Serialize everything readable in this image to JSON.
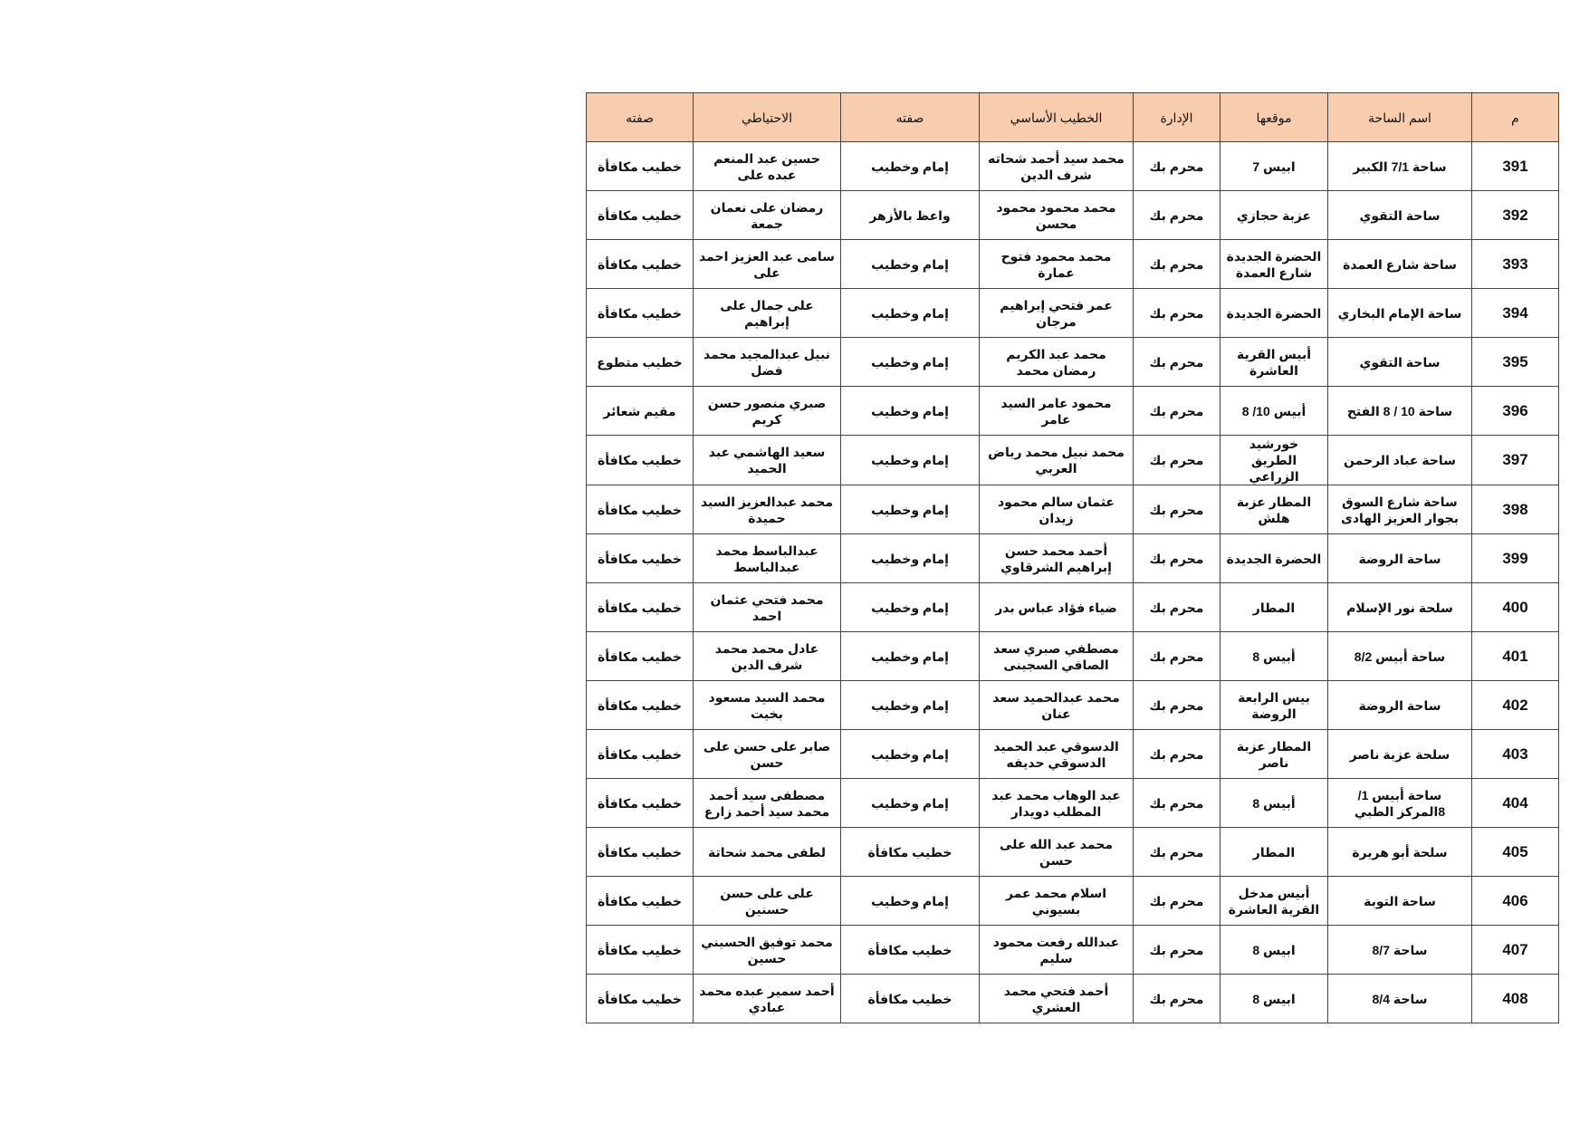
{
  "table": {
    "headers": [
      "م",
      "اسم الساحة",
      "موقعها",
      "الإدارة",
      "الخطيب الأساسي",
      "صفته",
      "الاحتياطي",
      "صفته"
    ],
    "rows": [
      [
        "391",
        "ساحة 7/1 الكبير",
        "ابيس 7",
        "محرم بك",
        "محمد سيد أحمد شحاته شرف الدين",
        "إمام وخطيب",
        "حسين عبد المنعم عبده على",
        "خطيب مكافأة"
      ],
      [
        "392",
        "ساحة التقوي",
        "عزبة حجازي",
        "محرم بك",
        "محمد محمود محمود محسن",
        "واعظ بالأزهر",
        "رمضان على نعمان جمعة",
        "خطيب مكافأة"
      ],
      [
        "393",
        "ساحة شارع العمدة",
        "الحضرة الجديدة شارع العمدة",
        "محرم بك",
        "محمد محمود فتوح عمارة",
        "إمام وخطيب",
        "سامى عبد العزيز احمد على",
        "خطيب مكافأة"
      ],
      [
        "394",
        "ساحة الإمام البخاري",
        "الحضرة الجديدة",
        "محرم بك",
        "عمر فتحي إبراهيم مرجان",
        "إمام وخطيب",
        "على جمال على إبراهيم",
        "خطيب مكافأة"
      ],
      [
        "395",
        "ساحة التقوي",
        "أبيس القرية العاشرة",
        "محرم بك",
        "محمد عبد الكريم رمضان محمد",
        "إمام وخطيب",
        "نبيل عبدالمجيد محمد فضل",
        "خطيب متطوع"
      ],
      [
        "396",
        "ساحة 10 / 8 الفتح",
        "أبيس 10/ 8",
        "محرم بك",
        "محمود عامر السيد عامر",
        "إمام وخطيب",
        "صبري منصور حسن كريم",
        "مقيم شعائر"
      ],
      [
        "397",
        "ساحة عباد الرحمن",
        "خورشيد الطريق الزراعي",
        "محرم بك",
        "محمد نبيل محمد رياض العربي",
        "إمام وخطيب",
        "سعيد الهاشمي عبد الحميد",
        "خطيب مكافأة"
      ],
      [
        "398",
        "ساحة شارع السوق بجوار العزيز الهادى",
        "المطار عزبة هلش",
        "محرم بك",
        "عثمان سالم محمود زيدان",
        "إمام وخطيب",
        "محمد عبدالعزيز السيد حميدة",
        "خطيب مكافأة"
      ],
      [
        "399",
        "ساحة الروضة",
        "الحضرة الجديدة",
        "محرم بك",
        "أحمد محمد حسن إبراهيم الشرقاوي",
        "إمام وخطيب",
        "عبدالباسط محمد عبدالباسط",
        "خطيب مكافأة"
      ],
      [
        "400",
        "سلحة نور الإسلام",
        "المطار",
        "محرم بك",
        "ضياء فؤاد عباس بدر",
        "إمام وخطيب",
        "محمد فتحي عثمان احمد",
        "خطيب مكافأة"
      ],
      [
        "401",
        "ساحة أبيس 8/2",
        "أبيس 8",
        "محرم بك",
        "مصطفي صبري سعد الصافي السجينى",
        "إمام وخطيب",
        "عادل محمد محمد شرف الدين",
        "خطيب مكافأة"
      ],
      [
        "402",
        "ساحة الروضة",
        "بيس الرابعة الروضة",
        "محرم بك",
        "محمد عبدالحميد سعد عنان",
        "إمام وخطيب",
        "محمد السيد مسعود بخيت",
        "خطيب مكافأة"
      ],
      [
        "403",
        "سلحة عزبة ناصر",
        "المطار عزبة ناصر",
        "محرم بك",
        "الدسوقي عبد الحميد الدسوقي حديفه",
        "إمام وخطيب",
        "صابر على حسن على حسن",
        "خطيب مكافأة"
      ],
      [
        "404",
        "ساحة أبيس 1/ 8المركز الطبي",
        "أبيس 8",
        "محرم بك",
        "عبد الوهاب محمد عبد المطلب دويدار",
        "إمام وخطيب",
        "مصطفى سيد أحمد محمد سيد أحمد زارع",
        "خطيب مكافأة"
      ],
      [
        "405",
        "سلحة أبو هريرة",
        "المطار",
        "محرم بك",
        "محمد عبد الله على حسن",
        "خطيب مكافأة",
        "لطفى محمد شحاتة",
        "خطيب مكافأة"
      ],
      [
        "406",
        "ساحة التوبة",
        "أبيس مدخل القرية العاشرة",
        "محرم بك",
        "اسلام محمد عمر بسيوني",
        "إمام وخطيب",
        "على على حسن حسنين",
        "خطيب مكافأة"
      ],
      [
        "407",
        "ساحة 8/7",
        "ابيس 8",
        "محرم بك",
        "عبدالله رفعت محمود سليم",
        "خطيب مكافأة",
        "محمد توفيق الحسيني حسين",
        "خطيب مكافأة"
      ],
      [
        "408",
        "ساحة 8/4",
        "ابيس 8",
        "محرم بك",
        "أحمد فتحي محمد العشري",
        "خطيب مكافأة",
        "أحمد سمير عبده محمد عبادي",
        "خطيب مكافأة"
      ]
    ]
  }
}
